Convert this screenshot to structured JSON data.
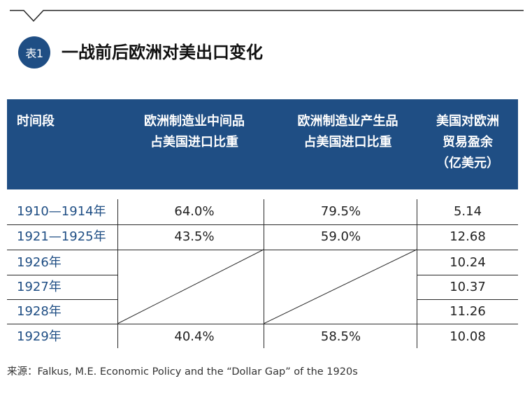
{
  "header": {
    "badge": "表1",
    "title": "一战前后欧洲对美出口变化"
  },
  "table": {
    "columns": [
      {
        "lines": [
          "时间段"
        ]
      },
      {
        "lines": [
          "欧洲制造业中间品",
          "占美国进口比重"
        ]
      },
      {
        "lines": [
          "欧洲制造业产生品",
          "占美国进口比重"
        ]
      },
      {
        "lines": [
          "美国对欧洲",
          "贸易盈余",
          "（亿美元）"
        ]
      }
    ],
    "rows": [
      {
        "period": "1910—1914年",
        "intermediate_share": "64.0%",
        "final_share": "79.5%",
        "surplus": "5.14"
      },
      {
        "period": "1921—1925年",
        "intermediate_share": "43.5%",
        "final_share": "59.0%",
        "surplus": "12.68"
      },
      {
        "period": "1926年",
        "intermediate_share": "",
        "final_share": "",
        "surplus": "10.24"
      },
      {
        "period": "1927年",
        "intermediate_share": "",
        "final_share": "",
        "surplus": "10.37"
      },
      {
        "period": "1928年",
        "intermediate_share": "",
        "final_share": "",
        "surplus": "11.26"
      },
      {
        "period": "1929年",
        "intermediate_share": "40.4%",
        "final_share": "58.5%",
        "surplus": "10.08"
      }
    ]
  },
  "source": "来源：Falkus, M.E. Economic Policy and the “Dollar Gap” of the 1920s",
  "colors": {
    "accent": "#1f4e84",
    "text": "#222222"
  }
}
